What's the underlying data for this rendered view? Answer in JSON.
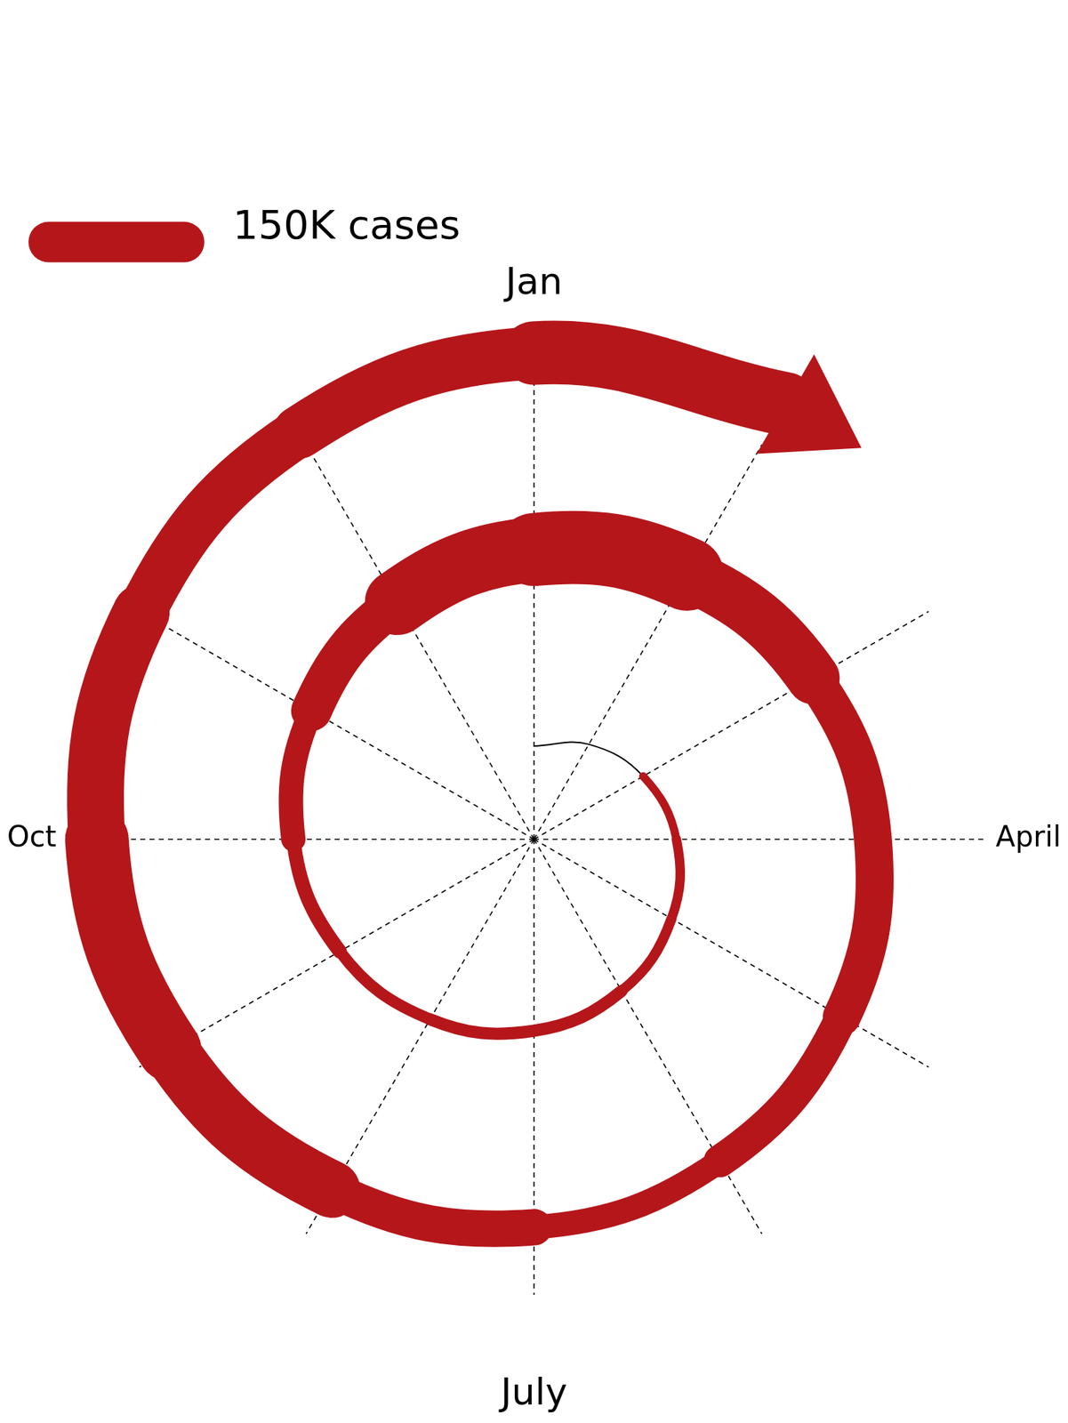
{
  "chart_data": {
    "type": "spiral",
    "spokes": [
      "Jan",
      null,
      null,
      "April",
      null,
      null,
      "July",
      null,
      null,
      "Oct",
      null,
      null
    ],
    "values": [
      0,
      0,
      25000,
      35000,
      35000,
      40000,
      50000,
      40000,
      45000,
      60000,
      120000,
      180000,
      300000,
      240000,
      150000,
      130000,
      150000,
      90000,
      90000,
      180000,
      240000,
      230000,
      190000,
      170000,
      220000,
      250000
    ],
    "color": "#b5161a",
    "legend_key": {
      "value": 150000,
      "label": "150K cases"
    },
    "legend": "upper left",
    "grid": true,
    "tick_labels": false
  }
}
